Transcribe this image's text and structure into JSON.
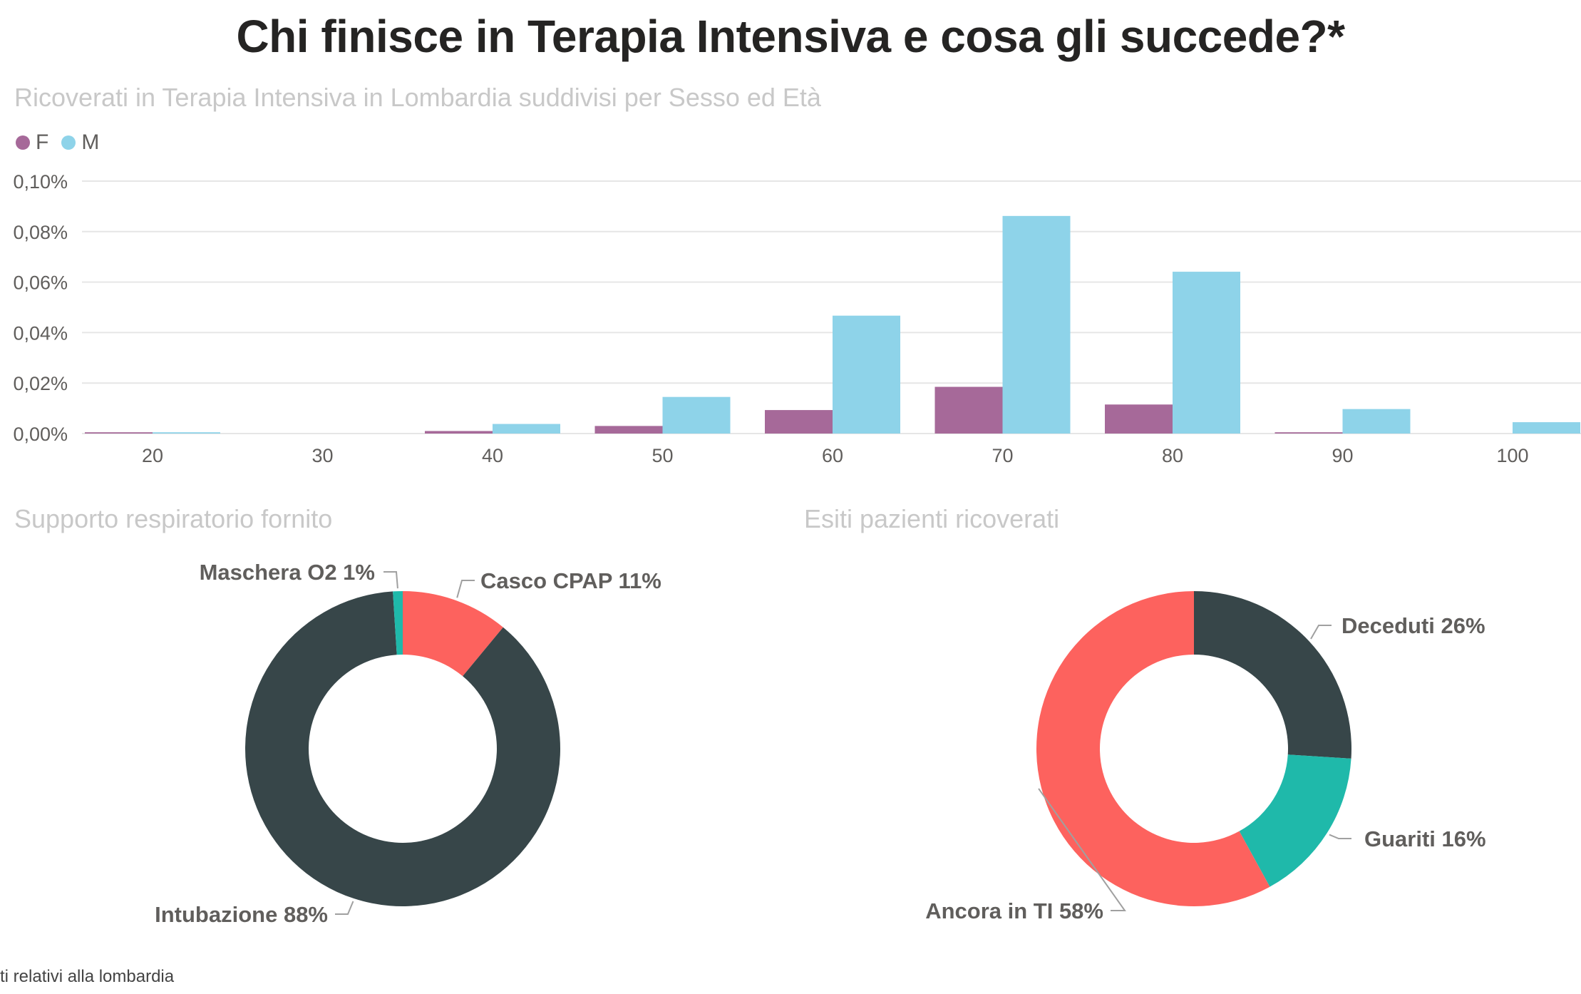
{
  "title": "Chi finisce in Terapia Intensiva e cosa gli succede?*",
  "footnote": "ti relativi alla lombardia",
  "colors": {
    "F": "#a66999",
    "M": "#8ed3e9",
    "dark": "#374649",
    "red": "#fd625e",
    "teal": "#1fb9aa",
    "grid": "#e6e6e6",
    "axis_text": "#605e5c",
    "label_text": "#605e5c"
  },
  "bar_chart": {
    "subtitle": "Ricoverati in Terapia Intensiva in Lombardia  suddivisi per Sesso ed Età",
    "legend": [
      {
        "key": "F",
        "label": "F"
      },
      {
        "key": "M",
        "label": "M"
      }
    ]
  },
  "donut_left": {
    "subtitle": "Supporto respiratorio fornito"
  },
  "donut_right": {
    "subtitle": "Esiti pazienti ricoverati"
  },
  "chart_data": [
    {
      "type": "bar",
      "title": "Ricoverati in Terapia Intensiva in Lombardia  suddivisi per Sesso ed Età",
      "categories": [
        "20",
        "30",
        "40",
        "50",
        "60",
        "70",
        "80",
        "90",
        "100"
      ],
      "series": [
        {
          "name": "F",
          "color": "#a66999",
          "values": [
            0.0005,
            0.0,
            0.001,
            0.003,
            0.0093,
            0.0185,
            0.0115,
            0.0005,
            0.0
          ]
        },
        {
          "name": "M",
          "color": "#8ed3e9",
          "values": [
            0.0005,
            0.0,
            0.0038,
            0.0145,
            0.0467,
            0.0862,
            0.0641,
            0.0097,
            0.0045
          ]
        }
      ],
      "ylim": [
        0,
        0.1
      ],
      "yticks": [
        "0,00%",
        "0,02%",
        "0,04%",
        "0,06%",
        "0,08%",
        "0,10%"
      ],
      "ytick_values": [
        0,
        0.02,
        0.04,
        0.06,
        0.08,
        0.1
      ],
      "grid": true,
      "legend_position": "top-left"
    },
    {
      "type": "pie",
      "variant": "donut",
      "title": "Supporto respiratorio fornito",
      "slices": [
        {
          "label": "Casco CPAP 11%",
          "name": "Casco CPAP",
          "value": 11,
          "color": "#fd625e"
        },
        {
          "label": "Intubazione 88%",
          "name": "Intubazione",
          "value": 88,
          "color": "#374649"
        },
        {
          "label": "Maschera O2 1%",
          "name": "Maschera O2",
          "value": 1,
          "color": "#1fb9aa"
        }
      ]
    },
    {
      "type": "pie",
      "variant": "donut",
      "title": "Esiti pazienti ricoverati",
      "slices": [
        {
          "label": "Deceduti 26%",
          "name": "Deceduti",
          "value": 26,
          "color": "#374649"
        },
        {
          "label": "Guariti 16%",
          "name": "Guariti",
          "value": 16,
          "color": "#1fb9aa"
        },
        {
          "label": "Ancora in TI 58%",
          "name": "Ancora in TI",
          "value": 58,
          "color": "#fd625e"
        }
      ]
    }
  ]
}
